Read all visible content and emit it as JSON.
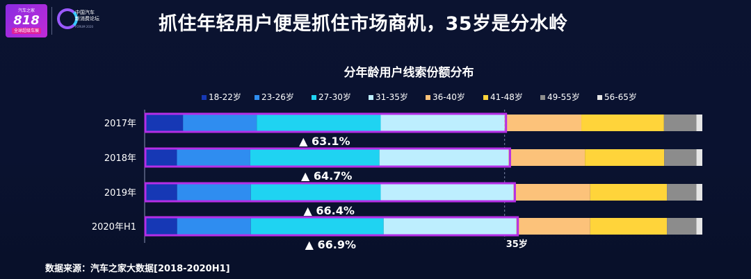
{
  "header": {
    "logo_top": "汽车之家",
    "logo_number": "818",
    "logo_sub": "全球超级车展",
    "forum_name_line1": "中国汽车",
    "forum_name_line2": "新消费论坛",
    "forum_name_en": "FORUM 2020",
    "title": "抓住年轻用户便是抓住市场商机，35岁是分水岭"
  },
  "footer": {
    "source": "数据来源：汽车之家大数据[2018-2020H1]"
  },
  "colors": {
    "background": "#0a1230",
    "highlight_box": "#b52ee6",
    "segments": [
      "#1638b5",
      "#2f8df0",
      "#1fd3f2",
      "#bdeefe",
      "#fcc27a",
      "#ffd43a",
      "#8c8c8c",
      "#e5e5e5"
    ]
  },
  "chart_data": {
    "type": "bar",
    "orientation": "horizontal",
    "stacked": true,
    "normalized": true,
    "title": "分年龄用户线索份额分布",
    "categories": [
      "2017年",
      "2018年",
      "2019年",
      "2020年H1"
    ],
    "series": [
      {
        "name": "18-22岁",
        "values": [
          6.5,
          5.5,
          5.5,
          5.5
        ]
      },
      {
        "name": "23-26岁",
        "values": [
          12.5,
          12.5,
          12.5,
          12.5
        ]
      },
      {
        "name": "27-30岁",
        "values": [
          21.0,
          22.0,
          22.0,
          22.5
        ]
      },
      {
        "name": "31-35岁",
        "values": [
          21.0,
          22.0,
          22.5,
          22.5
        ]
      },
      {
        "name": "36-40岁",
        "values": [
          13.0,
          13.0,
          13.0,
          12.5
        ]
      },
      {
        "name": "41-48岁",
        "values": [
          14.0,
          13.5,
          13.0,
          13.0
        ]
      },
      {
        "name": "49-55岁",
        "values": [
          5.5,
          5.5,
          5.0,
          5.0
        ]
      },
      {
        "name": "56-65岁",
        "values": [
          1.0,
          1.0,
          1.0,
          1.0
        ]
      }
    ],
    "annotations": [
      "▲ 63.1%",
      "▲ 64.7%",
      "▲ 66.4%",
      "▲ 66.9%"
    ],
    "reference_line_label": "35岁",
    "legend_position": "top",
    "xlim": [
      0,
      100
    ],
    "grid": false
  }
}
